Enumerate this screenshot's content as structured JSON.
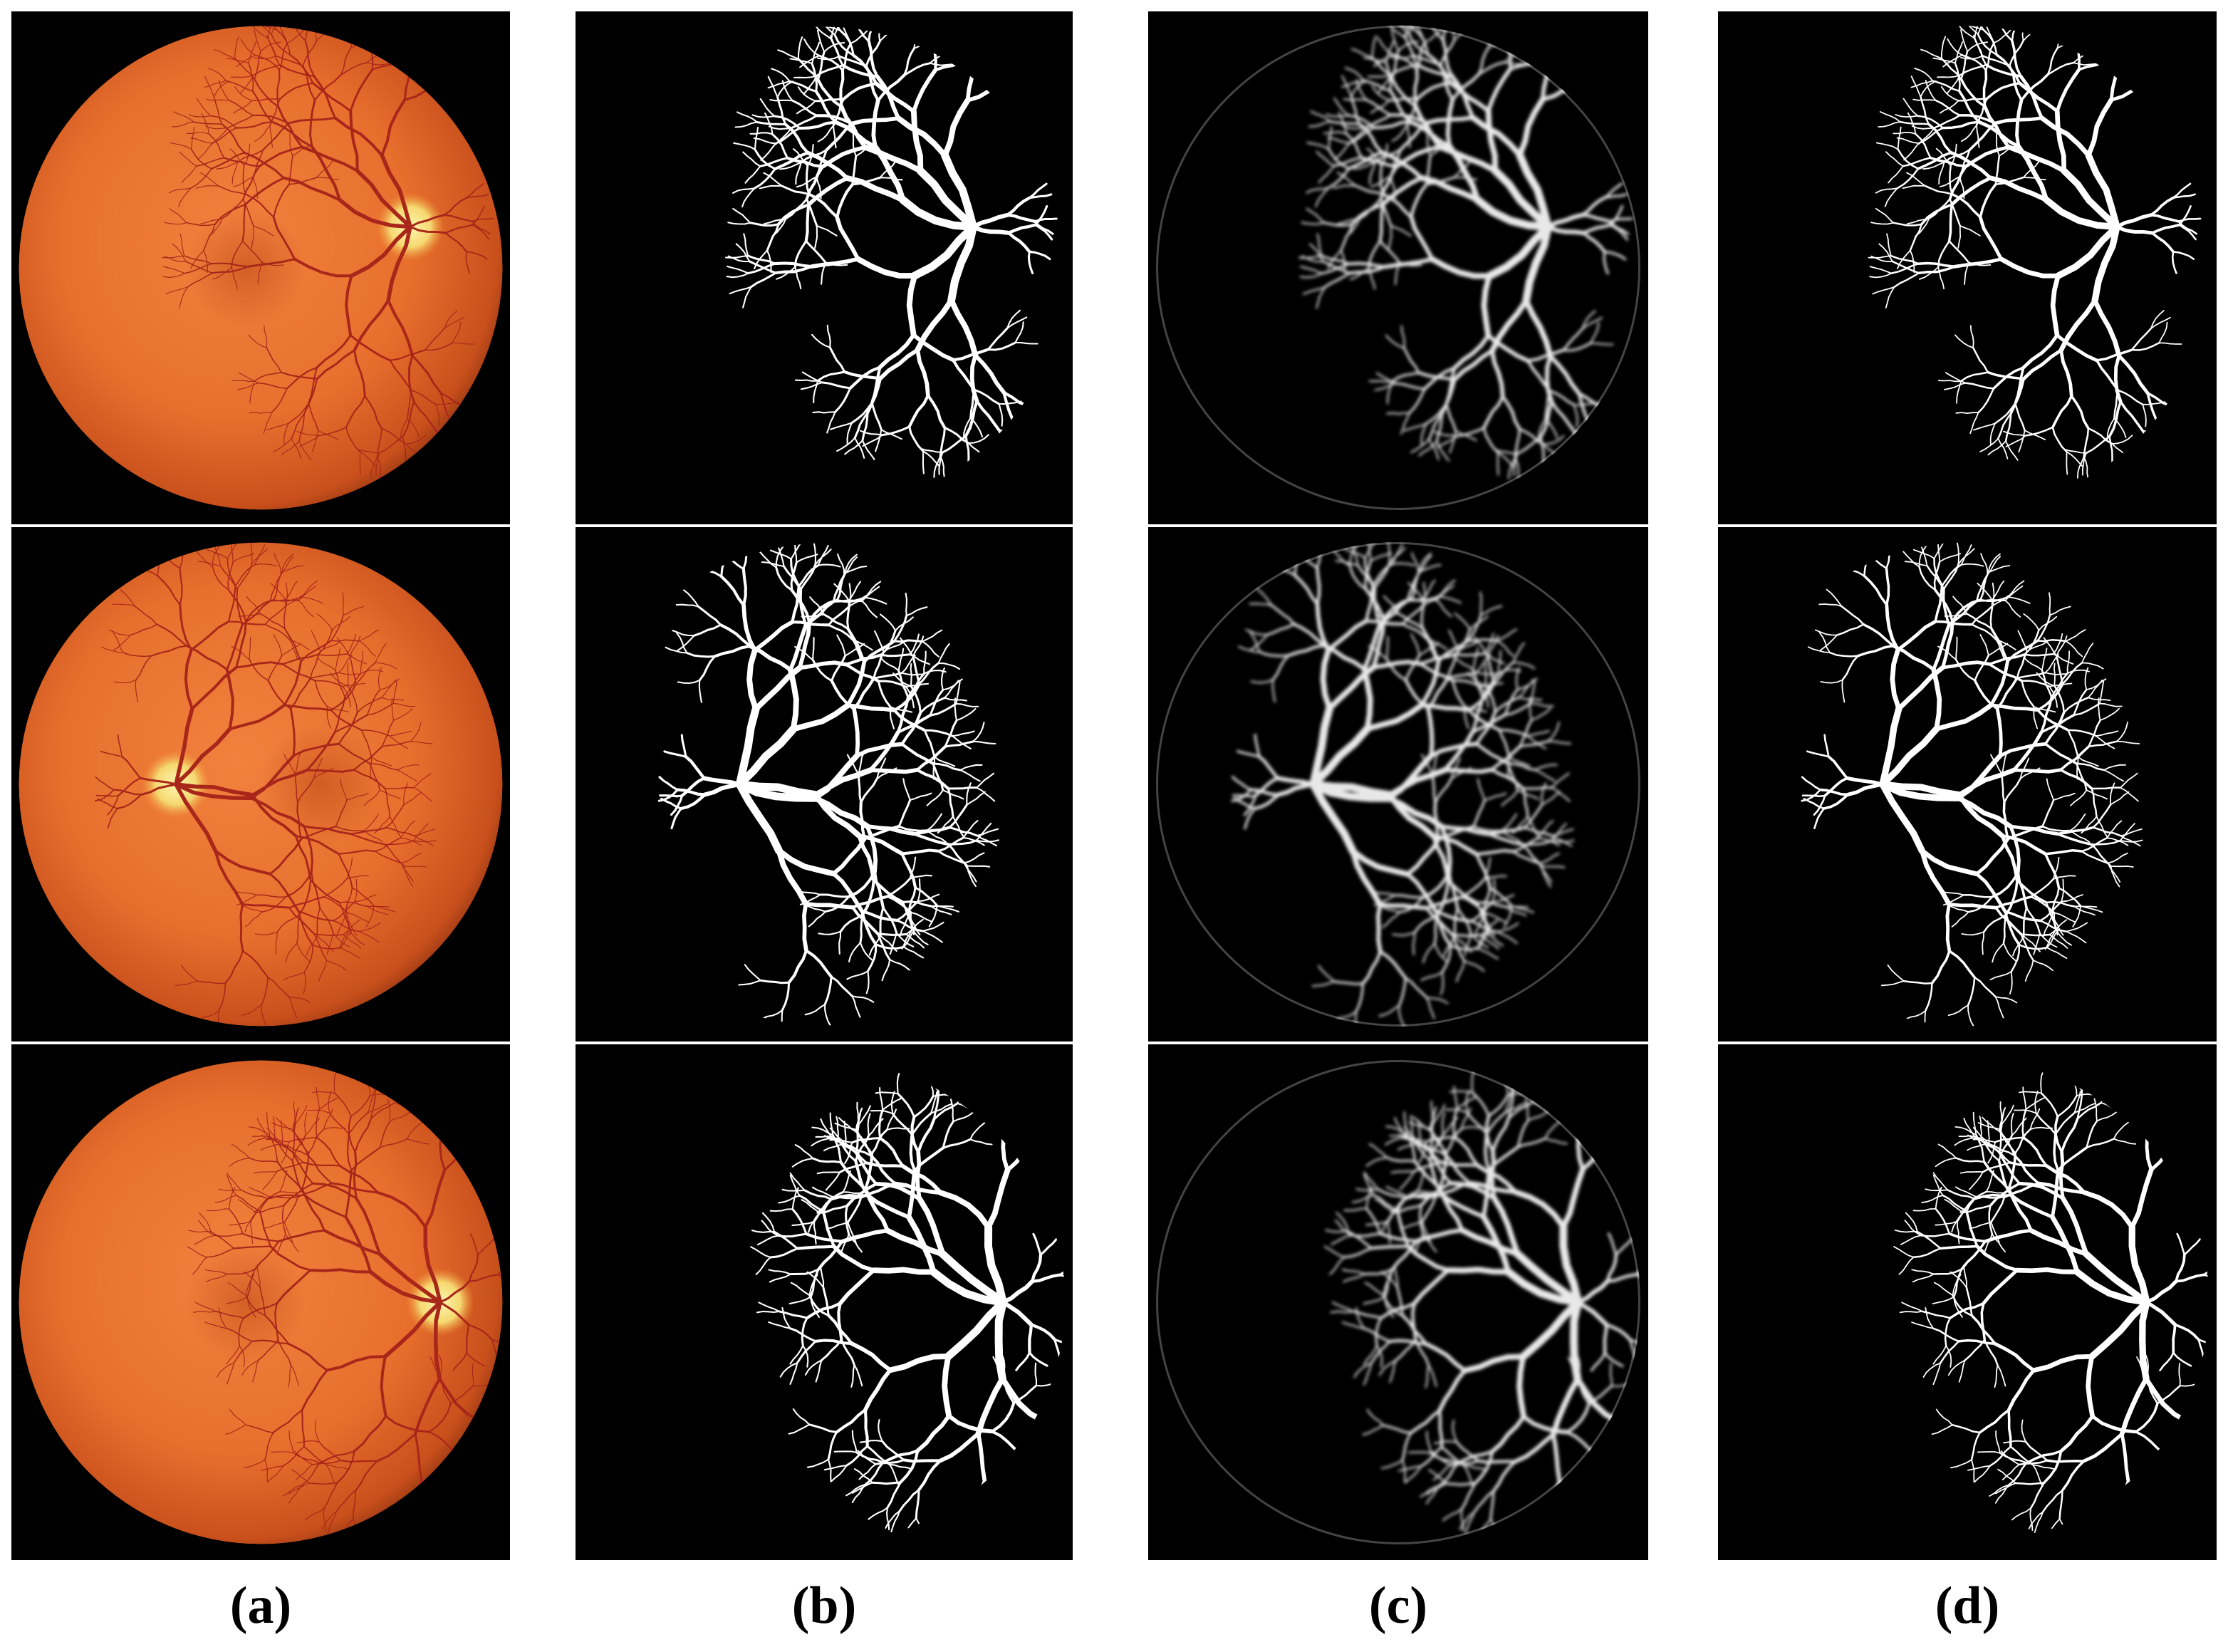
{
  "figure": {
    "panels": [
      "(a)",
      "(b)",
      "(c)",
      "(d)"
    ]
  }
}
